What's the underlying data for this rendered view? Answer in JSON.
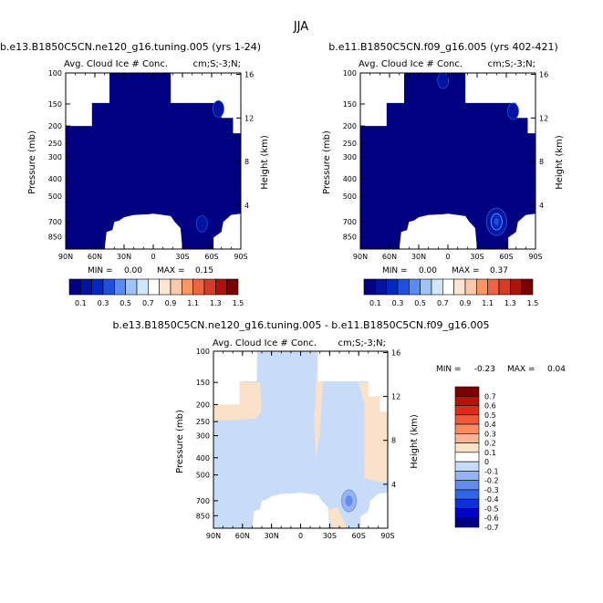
{
  "page": {
    "title": "JJA"
  },
  "colors": {
    "abs_scale": [
      "#000080",
      "#0014a0",
      "#0028c0",
      "#1e50dc",
      "#5a8cf0",
      "#a0c3f5",
      "#d2e6fa",
      "#ffffff",
      "#fae6d2",
      "#fac8aa",
      "#fa9664",
      "#eb6446",
      "#d23c28",
      "#aa140a",
      "#780000"
    ],
    "diff_scale": [
      "#000080",
      "#0000c8",
      "#0a32dc",
      "#3264e6",
      "#648cf0",
      "#96b4f0",
      "#c8dcfa",
      "#ffffff",
      "#fae1c8",
      "#fab496",
      "#fa8c64",
      "#f05a37",
      "#dc2d14",
      "#b41400",
      "#7d0000"
    ]
  },
  "chart_data": [
    {
      "id": "model",
      "type": "heatmap",
      "case_title": "b.e13.B1850C5CN.ne120_g16.tuning.005 (yrs 1-24)",
      "title": "Avg. Cloud Ice # Conc.",
      "units": "cm;S;-3;N;",
      "xlabel": "",
      "ylabel": "Pressure (mb)",
      "y2label": "Height (km)",
      "x_ticks": [
        "90N",
        "60N",
        "30N",
        "0",
        "30S",
        "60S",
        "90S"
      ],
      "y_ticks": [
        "100",
        "150",
        "200",
        "250",
        "300",
        "400",
        "500",
        "700",
        "850"
      ],
      "y2_ticks": [
        "16",
        "12",
        "8",
        "4"
      ],
      "xlim": [
        90,
        -90
      ],
      "ylim": [
        100,
        1000
      ],
      "min_label": "MIN =",
      "min_value": "0.00",
      "max_label": "MAX =",
      "max_value": "0.15",
      "colorbar_labels": [
        "0.1",
        "0.3",
        "0.5",
        "0.7",
        "0.9",
        "1.1",
        "1.3",
        "1.5"
      ],
      "features": [
        {
          "lat": -50,
          "p": 720,
          "level": 0.1
        },
        {
          "lat": -67,
          "p": 160,
          "level": 0.1
        }
      ]
    },
    {
      "id": "obs",
      "type": "heatmap",
      "case_title": "b.e11.B1850C5CN.f09_g16.005 (yrs 402-421)",
      "title": "Avg. Cloud Ice # Conc.",
      "units": "cm;S;-3;N;",
      "xlabel": "",
      "ylabel": "Pressure (mb)",
      "y2label": "Height (km)",
      "x_ticks": [
        "90N",
        "60N",
        "30N",
        "0",
        "30S",
        "60S",
        "90S"
      ],
      "y_ticks": [
        "100",
        "150",
        "200",
        "250",
        "300",
        "400",
        "500",
        "700",
        "850"
      ],
      "y2_ticks": [
        "16",
        "12",
        "8",
        "4"
      ],
      "xlim": [
        90,
        -90
      ],
      "ylim": [
        100,
        1000
      ],
      "min_label": "MIN =",
      "min_value": "0.00",
      "max_label": "MAX =",
      "max_value": "0.37",
      "colorbar_labels": [
        "0.1",
        "0.3",
        "0.5",
        "0.7",
        "0.9",
        "1.1",
        "1.3",
        "1.5"
      ],
      "features": [
        {
          "lat": -50,
          "p": 700,
          "level": 0.3
        },
        {
          "lat": 5,
          "p": 110,
          "level": 0.1
        },
        {
          "lat": -67,
          "p": 165,
          "level": 0.1
        }
      ]
    },
    {
      "id": "diff",
      "type": "heatmap",
      "case_title": "b.e13.B1850C5CN.ne120_g16.tuning.005 - b.e11.B1850C5CN.f09_g16.005",
      "title": "Avg. Cloud Ice # Conc.",
      "units": "cm;S;-3;N;",
      "xlabel": "",
      "ylabel": "Pressure (mb)",
      "y2label": "Height (km)",
      "x_ticks": [
        "90N",
        "60N",
        "30N",
        "0",
        "30S",
        "60S",
        "90S"
      ],
      "y_ticks": [
        "100",
        "150",
        "200",
        "250",
        "300",
        "400",
        "500",
        "700",
        "850"
      ],
      "y2_ticks": [
        "16",
        "12",
        "8",
        "4"
      ],
      "xlim": [
        90,
        -90
      ],
      "ylim": [
        100,
        1000
      ],
      "min_label": "MIN =",
      "min_value": "-0.23",
      "max_label": "MAX =",
      "max_value": "0.04",
      "colorbar_labels": [
        "0.7",
        "0.6",
        "0.5",
        "0.4",
        "0.3",
        "0.2",
        "0.1",
        "0",
        "-0.1",
        "-0.2",
        "-0.3",
        "-0.4",
        "-0.5",
        "-0.6",
        "-0.7"
      ],
      "features": [
        {
          "lat": -50,
          "p": 700,
          "level": -0.2
        },
        {
          "lat": 50,
          "p": 300,
          "level": 0.05
        },
        {
          "lat": -70,
          "p": 250,
          "level": 0.05
        }
      ]
    }
  ]
}
